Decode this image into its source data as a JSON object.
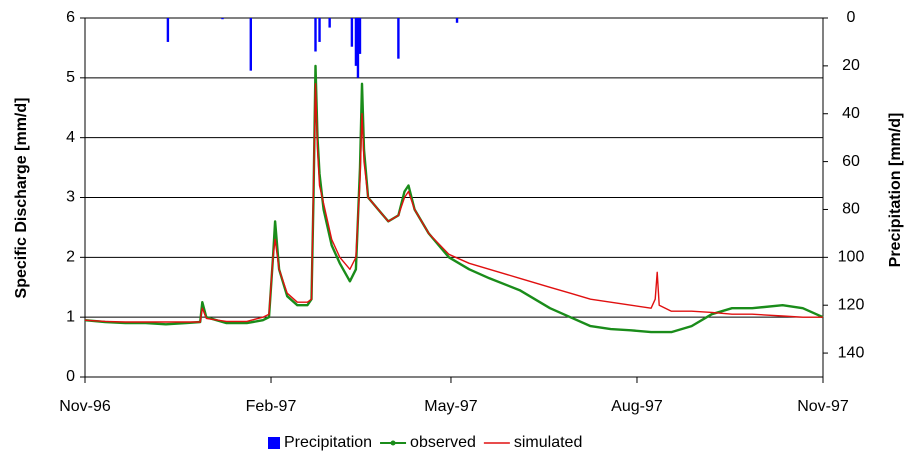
{
  "chart_data": {
    "type": "line",
    "y_label": "Specific Discharge [mm/d]",
    "y2_label": "Precipitation [mm/d]",
    "xlim": [
      0,
      365
    ],
    "xticks": [
      {
        "value": 0,
        "label": "Nov-96"
      },
      {
        "value": 92,
        "label": "Feb-97"
      },
      {
        "value": 181,
        "label": "May-97"
      },
      {
        "value": 273,
        "label": "Aug-97"
      },
      {
        "value": 365,
        "label": "Nov-97"
      }
    ],
    "ylim": [
      0,
      6
    ],
    "yticks": [
      0,
      1,
      2,
      3,
      4,
      5,
      6
    ],
    "y2lim": [
      150,
      0
    ],
    "y2ticks": [
      0,
      20,
      40,
      60,
      80,
      100,
      120,
      140
    ],
    "y2_inverted": true,
    "grid": true,
    "legend": "bottom",
    "x": [
      0,
      10,
      20,
      30,
      40,
      50,
      57,
      58,
      60,
      70,
      80,
      88,
      91,
      93,
      94,
      96,
      100,
      105,
      110,
      112,
      113,
      114,
      115,
      116,
      118,
      122,
      126,
      131,
      134,
      136,
      137,
      138,
      140,
      145,
      150,
      155,
      158,
      160,
      163,
      170,
      180,
      190,
      200,
      215,
      230,
      240,
      250,
      260,
      270,
      280,
      282,
      283,
      284,
      290,
      300,
      310,
      320,
      330,
      345,
      355,
      365
    ],
    "series": [
      {
        "name": "Precipitation",
        "color": "#0000ff",
        "axis": "y2",
        "type": "bar",
        "x": [
          41,
          68,
          82,
          114,
          116,
          121,
          132,
          134,
          135,
          136,
          155,
          184
        ],
        "values": [
          10,
          0.5,
          22,
          14,
          10,
          4,
          12,
          20,
          25,
          15,
          17,
          2
        ]
      },
      {
        "name": "observed",
        "color": "#1a8c1a",
        "type": "line",
        "markers": true,
        "values": [
          0.95,
          0.92,
          0.9,
          0.9,
          0.88,
          0.9,
          0.92,
          1.25,
          1.0,
          0.9,
          0.9,
          0.95,
          1.0,
          2.0,
          2.6,
          1.8,
          1.35,
          1.2,
          1.2,
          1.3,
          3.0,
          5.2,
          4.0,
          3.4,
          2.8,
          2.2,
          1.9,
          1.6,
          1.8,
          3.5,
          4.9,
          3.8,
          3.0,
          2.8,
          2.6,
          2.7,
          3.1,
          3.2,
          2.8,
          2.4,
          2.0,
          1.8,
          1.65,
          1.45,
          1.15,
          1.0,
          0.85,
          0.8,
          0.78,
          0.75,
          0.75,
          0.75,
          0.75,
          0.75,
          0.85,
          1.05,
          1.15,
          1.15,
          1.2,
          1.15,
          1.0
        ]
      },
      {
        "name": "simulated",
        "color": "#e01010",
        "type": "line",
        "values": [
          0.95,
          0.93,
          0.92,
          0.92,
          0.92,
          0.92,
          0.92,
          1.15,
          0.98,
          0.93,
          0.93,
          1.0,
          1.05,
          2.0,
          2.3,
          1.8,
          1.4,
          1.25,
          1.25,
          1.3,
          3.2,
          4.9,
          3.8,
          3.2,
          2.9,
          2.3,
          2.0,
          1.8,
          2.0,
          3.3,
          4.4,
          3.6,
          3.0,
          2.8,
          2.6,
          2.7,
          3.0,
          3.1,
          2.8,
          2.4,
          2.05,
          1.9,
          1.8,
          1.65,
          1.5,
          1.4,
          1.3,
          1.25,
          1.2,
          1.15,
          1.3,
          1.75,
          1.2,
          1.1,
          1.1,
          1.08,
          1.05,
          1.05,
          1.02,
          1.0,
          1.0
        ]
      }
    ]
  }
}
